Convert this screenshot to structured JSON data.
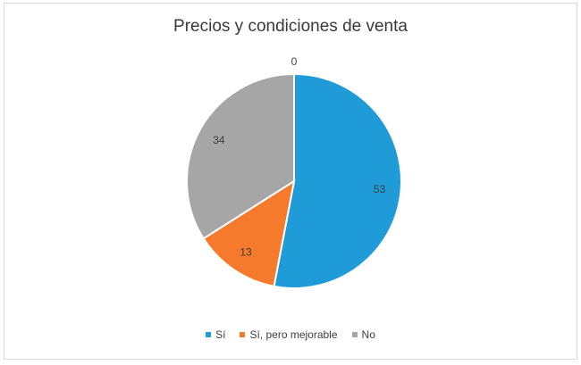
{
  "chart_data": {
    "type": "pie",
    "title": "Precios y condiciones de venta",
    "categories": [
      "Sí",
      "Sí, pero mejorable",
      "No",
      ""
    ],
    "values": [
      53,
      13,
      34,
      0
    ],
    "labels": [
      "53",
      "13",
      "34",
      "0"
    ],
    "colors": [
      "#1f9bd8",
      "#f57a2b",
      "#a6a6a6",
      "#f0c419"
    ],
    "legend": {
      "position": "bottom",
      "entries": [
        "Sí",
        "Sí, pero mejorable",
        "No"
      ]
    }
  }
}
